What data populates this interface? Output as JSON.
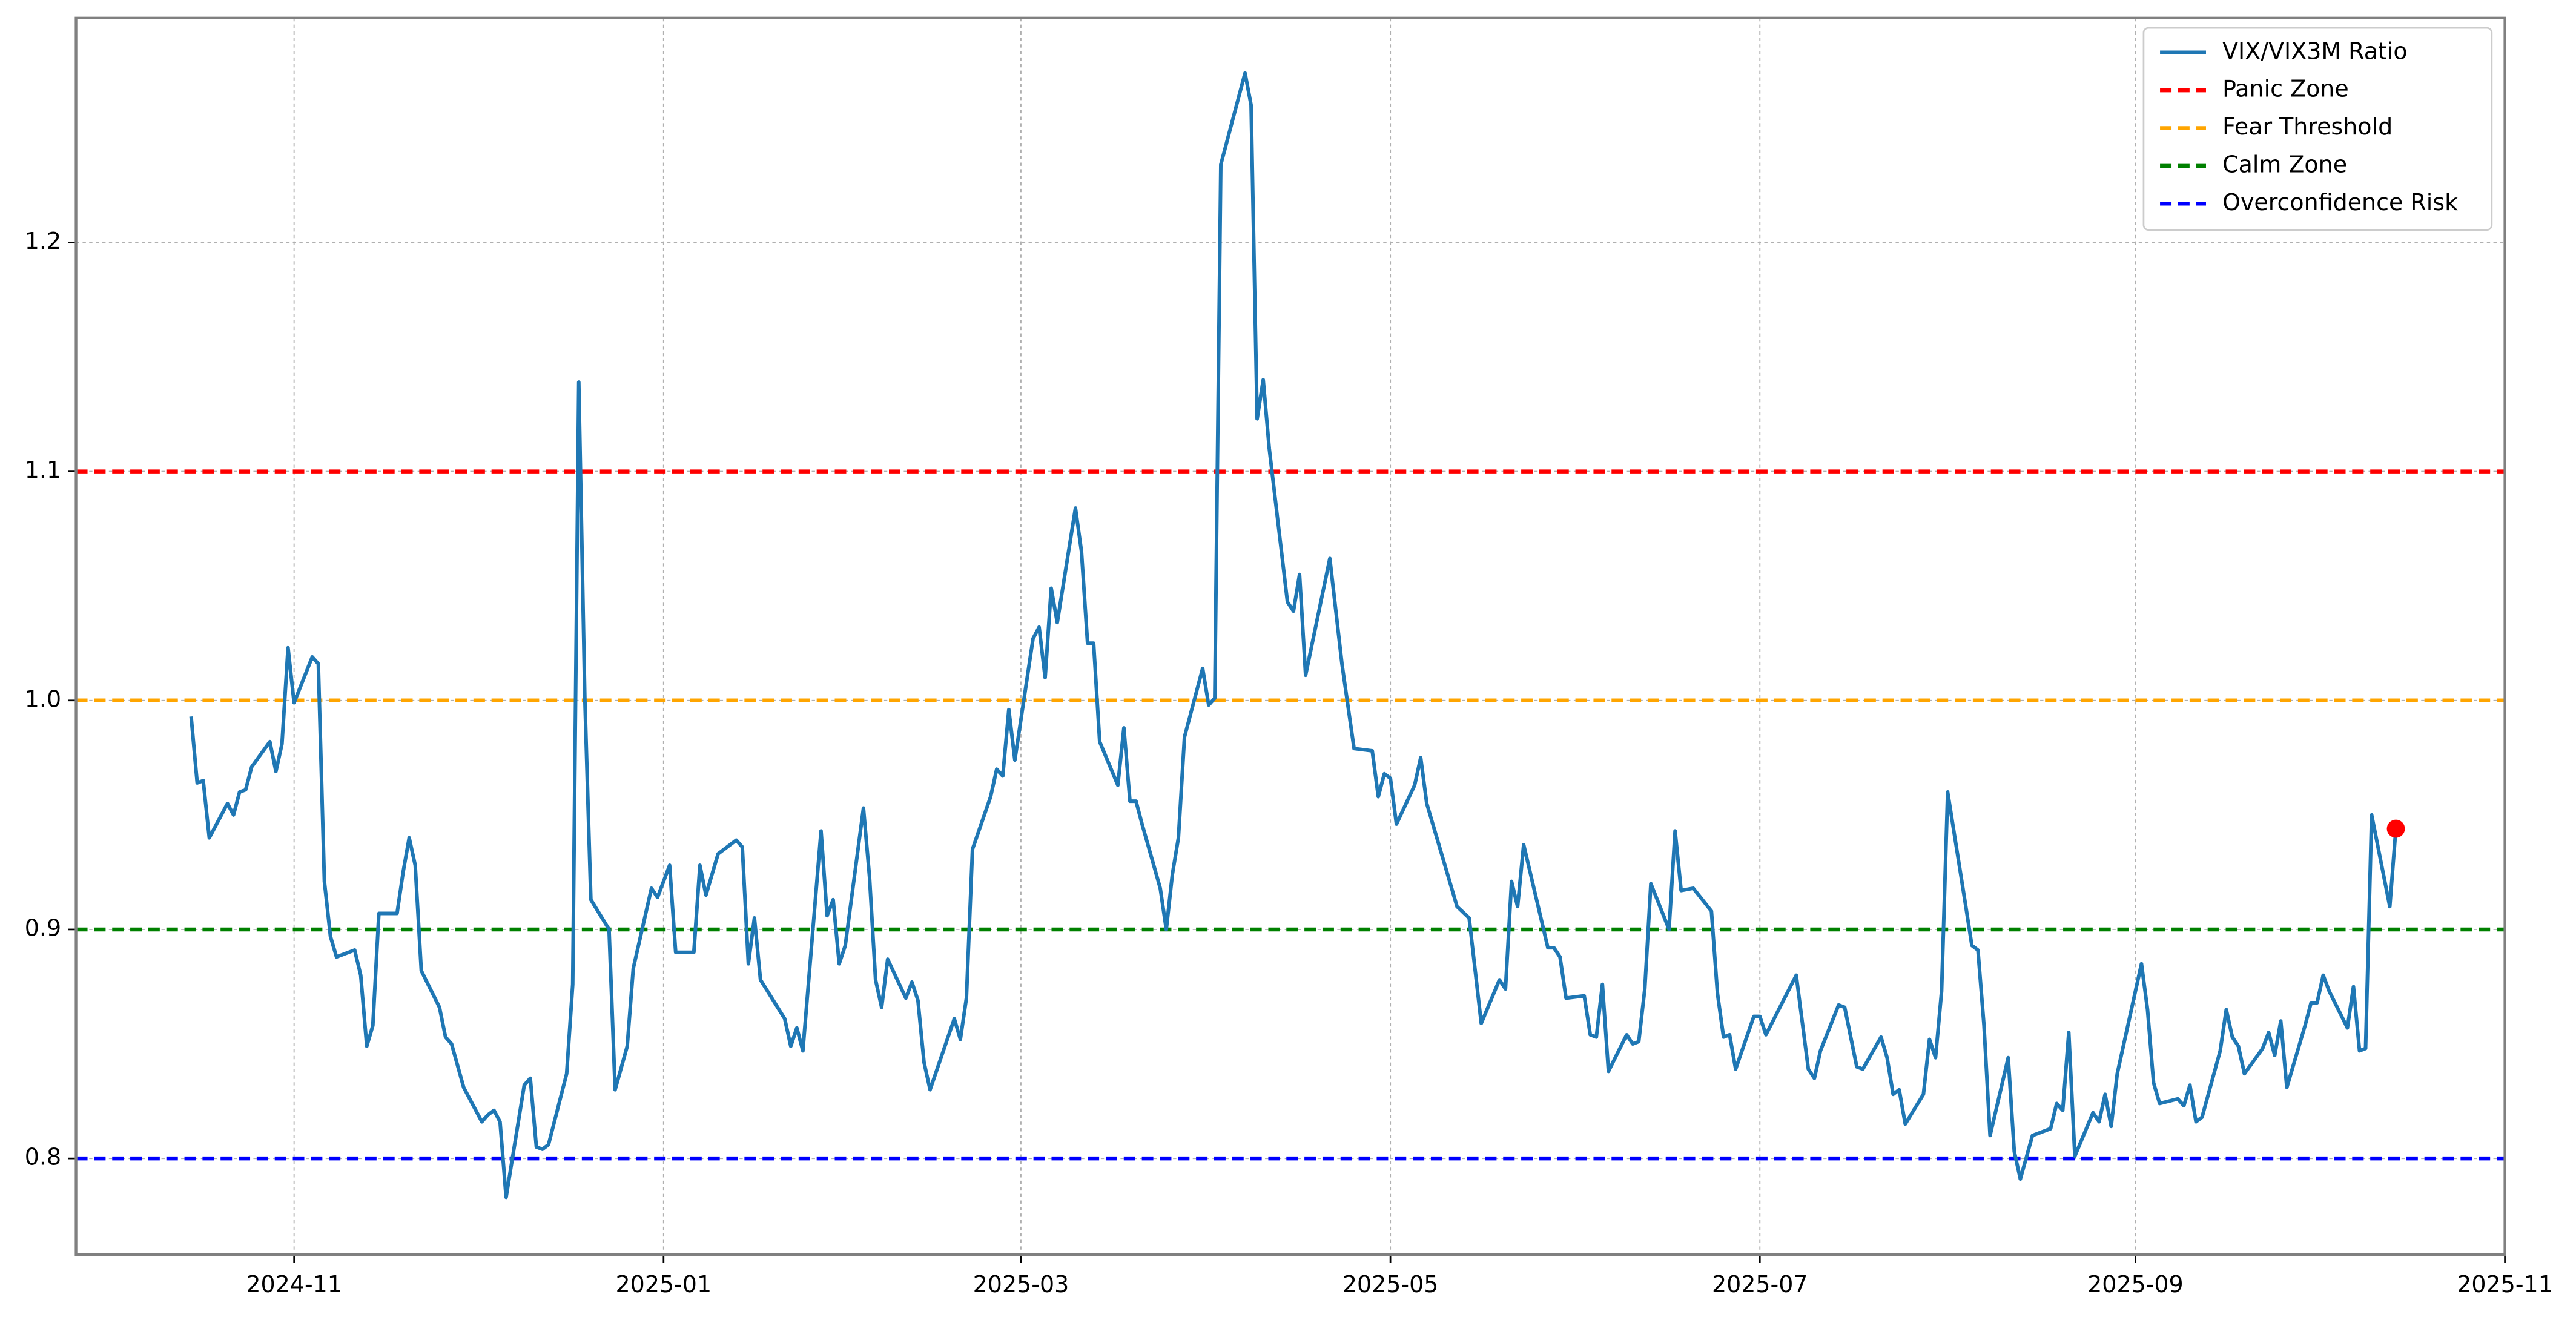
{
  "chart_data": {
    "type": "line",
    "xlim": [
      "2024-09-26",
      "2025-11-01"
    ],
    "ylim": [
      0.758,
      1.298
    ],
    "xticks": [
      {
        "value": "2024-11-01",
        "label": "2024-11"
      },
      {
        "value": "2025-01-01",
        "label": "2025-01"
      },
      {
        "value": "2025-03-01",
        "label": "2025-03"
      },
      {
        "value": "2025-05-01",
        "label": "2025-05"
      },
      {
        "value": "2025-07-01",
        "label": "2025-07"
      },
      {
        "value": "2025-09-01",
        "label": "2025-09"
      },
      {
        "value": "2025-11-01",
        "label": "2025-11"
      }
    ],
    "yticks": [
      0.8,
      0.9,
      {
        "value": 1,
        "label": "1.0"
      },
      1.1,
      1.2
    ],
    "grid": true,
    "legend": "upper right",
    "x": [
      "2024-10-15",
      "2024-10-16",
      "2024-10-17",
      "2024-10-18",
      "2024-10-21",
      "2024-10-22",
      "2024-10-23",
      "2024-10-24",
      "2024-10-25",
      "2024-10-28",
      "2024-10-29",
      "2024-10-30",
      "2024-10-31",
      "2024-11-01",
      "2024-11-04",
      "2024-11-05",
      "2024-11-06",
      "2024-11-07",
      "2024-11-08",
      "2024-11-11",
      "2024-11-12",
      "2024-11-13",
      "2024-11-14",
      "2024-11-15",
      "2024-11-18",
      "2024-11-19",
      "2024-11-20",
      "2024-11-21",
      "2024-11-22",
      "2024-11-25",
      "2024-11-26",
      "2024-11-27",
      "2024-11-29",
      "2024-12-02",
      "2024-12-03",
      "2024-12-04",
      "2024-12-05",
      "2024-12-06",
      "2024-12-09",
      "2024-12-10",
      "2024-12-11",
      "2024-12-12",
      "2024-12-13",
      "2024-12-16",
      "2024-12-17",
      "2024-12-18",
      "2024-12-19",
      "2024-12-20",
      "2024-12-23",
      "2024-12-24",
      "2024-12-26",
      "2024-12-27",
      "2024-12-30",
      "2024-12-31",
      "2025-01-02",
      "2025-01-03",
      "2025-01-06",
      "2025-01-07",
      "2025-01-08",
      "2025-01-10",
      "2025-01-13",
      "2025-01-14",
      "2025-01-15",
      "2025-01-16",
      "2025-01-17",
      "2025-01-21",
      "2025-01-22",
      "2025-01-23",
      "2025-01-24",
      "2025-01-27",
      "2025-01-28",
      "2025-01-29",
      "2025-01-30",
      "2025-01-31",
      "2025-02-03",
      "2025-02-04",
      "2025-02-05",
      "2025-02-06",
      "2025-02-07",
      "2025-02-10",
      "2025-02-11",
      "2025-02-12",
      "2025-02-13",
      "2025-02-14",
      "2025-02-18",
      "2025-02-19",
      "2025-02-20",
      "2025-02-21",
      "2025-02-24",
      "2025-02-25",
      "2025-02-26",
      "2025-02-27",
      "2025-02-28",
      "2025-03-03",
      "2025-03-04",
      "2025-03-05",
      "2025-03-06",
      "2025-03-07",
      "2025-03-10",
      "2025-03-11",
      "2025-03-12",
      "2025-03-13",
      "2025-03-14",
      "2025-03-17",
      "2025-03-18",
      "2025-03-19",
      "2025-03-20",
      "2025-03-21",
      "2025-03-24",
      "2025-03-25",
      "2025-03-26",
      "2025-03-27",
      "2025-03-28",
      "2025-03-31",
      "2025-04-01",
      "2025-04-02",
      "2025-04-03",
      "2025-04-07",
      "2025-04-08",
      "2025-04-09",
      "2025-04-10",
      "2025-04-11",
      "2025-04-14",
      "2025-04-15",
      "2025-04-16",
      "2025-04-17",
      "2025-04-21",
      "2025-04-23",
      "2025-04-25",
      "2025-04-28",
      "2025-04-29",
      "2025-04-30",
      "2025-05-01",
      "2025-05-02",
      "2025-05-05",
      "2025-05-06",
      "2025-05-07",
      "2025-05-12",
      "2025-05-14",
      "2025-05-16",
      "2025-05-19",
      "2025-05-20",
      "2025-05-21",
      "2025-05-22",
      "2025-05-23",
      "2025-05-27",
      "2025-05-28",
      "2025-05-29",
      "2025-05-30",
      "2025-06-02",
      "2025-06-03",
      "2025-06-04",
      "2025-06-05",
      "2025-06-06",
      "2025-06-09",
      "2025-06-10",
      "2025-06-11",
      "2025-06-12",
      "2025-06-13",
      "2025-06-16",
      "2025-06-17",
      "2025-06-18",
      "2025-06-20",
      "2025-06-23",
      "2025-06-24",
      "2025-06-25",
      "2025-06-26",
      "2025-06-27",
      "2025-06-30",
      "2025-07-01",
      "2025-07-02",
      "2025-07-07",
      "2025-07-09",
      "2025-07-10",
      "2025-07-11",
      "2025-07-14",
      "2025-07-15",
      "2025-07-17",
      "2025-07-18",
      "2025-07-21",
      "2025-07-22",
      "2025-07-23",
      "2025-07-24",
      "2025-07-25",
      "2025-07-28",
      "2025-07-29",
      "2025-07-30",
      "2025-07-31",
      "2025-08-01",
      "2025-08-04",
      "2025-08-05",
      "2025-08-06",
      "2025-08-07",
      "2025-08-08",
      "2025-08-11",
      "2025-08-12",
      "2025-08-13",
      "2025-08-15",
      "2025-08-18",
      "2025-08-19",
      "2025-08-20",
      "2025-08-21",
      "2025-08-22",
      "2025-08-25",
      "2025-08-26",
      "2025-08-27",
      "2025-08-28",
      "2025-08-29",
      "2025-09-02",
      "2025-09-03",
      "2025-09-04",
      "2025-09-05",
      "2025-09-08",
      "2025-09-09",
      "2025-09-10",
      "2025-09-11",
      "2025-09-12",
      "2025-09-15",
      "2025-09-16",
      "2025-09-17",
      "2025-09-18",
      "2025-09-19",
      "2025-09-22",
      "2025-09-23",
      "2025-09-24",
      "2025-09-25",
      "2025-09-26",
      "2025-09-29",
      "2025-09-30",
      "2025-10-01",
      "2025-10-02",
      "2025-10-03",
      "2025-10-06",
      "2025-10-07",
      "2025-10-08",
      "2025-10-09",
      "2025-10-10",
      "2025-10-13",
      "2025-10-14"
    ],
    "series": [
      {
        "name": "VIX/VIX3M Ratio",
        "color": "#1f77b4",
        "last_marker_color": "#ff0000",
        "values": [
          0.993,
          0.964,
          0.965,
          0.94,
          0.955,
          0.95,
          0.96,
          0.961,
          0.971,
          0.982,
          0.969,
          0.981,
          1.023,
          0.999,
          1.019,
          1.016,
          0.921,
          0.897,
          0.888,
          0.891,
          0.88,
          0.849,
          0.858,
          0.907,
          0.907,
          0.925,
          0.94,
          0.928,
          0.882,
          0.866,
          0.853,
          0.85,
          0.831,
          0.816,
          0.819,
          0.821,
          0.816,
          0.783,
          0.832,
          0.835,
          0.805,
          0.804,
          0.806,
          0.837,
          0.876,
          1.139,
          1.001,
          0.913,
          0.9,
          0.83,
          0.849,
          0.883,
          0.918,
          0.914,
          0.928,
          0.89,
          0.89,
          0.928,
          0.915,
          0.933,
          0.939,
          0.936,
          0.885,
          0.905,
          0.878,
          0.861,
          0.849,
          0.857,
          0.847,
          0.943,
          0.906,
          0.913,
          0.885,
          0.893,
          0.953,
          0.923,
          0.878,
          0.866,
          0.887,
          0.87,
          0.877,
          0.869,
          0.842,
          0.83,
          0.861,
          0.852,
          0.87,
          0.935,
          0.958,
          0.97,
          0.967,
          0.996,
          0.974,
          1.027,
          1.032,
          1.01,
          1.049,
          1.034,
          1.084,
          1.065,
          1.025,
          1.025,
          0.982,
          0.963,
          0.988,
          0.956,
          0.956,
          0.946,
          0.918,
          0.9,
          0.924,
          0.94,
          0.984,
          1.014,
          0.998,
          1.001,
          1.234,
          1.274,
          1.26,
          1.123,
          1.14,
          1.11,
          1.043,
          1.039,
          1.055,
          1.011,
          1.062,
          1.016,
          0.979,
          0.978,
          0.958,
          0.968,
          0.966,
          0.946,
          0.963,
          0.975,
          0.955,
          0.91,
          0.905,
          0.859,
          0.878,
          0.874,
          0.921,
          0.91,
          0.937,
          0.892,
          0.892,
          0.888,
          0.87,
          0.871,
          0.854,
          0.853,
          0.876,
          0.838,
          0.854,
          0.85,
          0.851,
          0.874,
          0.92,
          0.9,
          0.943,
          0.917,
          0.918,
          0.908,
          0.872,
          0.853,
          0.854,
          0.839,
          0.862,
          0.862,
          0.854,
          0.88,
          0.839,
          0.835,
          0.847,
          0.867,
          0.866,
          0.84,
          0.839,
          0.853,
          0.844,
          0.828,
          0.83,
          0.815,
          0.828,
          0.852,
          0.844,
          0.873,
          0.96,
          0.91,
          0.893,
          0.891,
          0.858,
          0.81,
          0.844,
          0.803,
          0.791,
          0.81,
          0.813,
          0.824,
          0.821,
          0.855,
          0.801,
          0.82,
          0.816,
          0.828,
          0.814,
          0.837,
          0.885,
          0.865,
          0.833,
          0.824,
          0.826,
          0.823,
          0.832,
          0.816,
          0.818,
          0.847,
          0.865,
          0.853,
          0.849,
          0.837,
          0.848,
          0.855,
          0.845,
          0.86,
          0.831,
          0.858,
          0.868,
          0.868,
          0.88,
          0.873,
          0.857,
          0.875,
          0.847,
          0.848,
          0.95,
          0.91,
          0.944
        ]
      }
    ],
    "hlines": [
      {
        "name": "Panic Zone",
        "value": 1.1,
        "color": "#ff0000"
      },
      {
        "name": "Fear Threshold",
        "value": 1,
        "color": "#ffa500"
      },
      {
        "name": "Calm Zone",
        "value": 0.9,
        "color": "#008000"
      },
      {
        "name": "Overconfidence Risk",
        "value": 0.8,
        "color": "#0000ff"
      }
    ]
  }
}
